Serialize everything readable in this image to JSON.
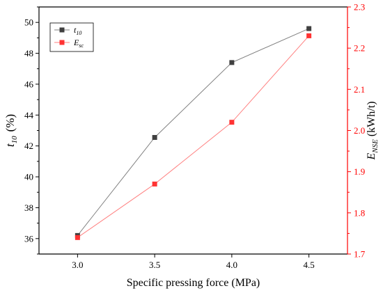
{
  "chart_data": {
    "type": "line",
    "xlabel": "Specific pressing force (MPa)",
    "x": [
      3.0,
      3.5,
      4.0,
      4.5
    ],
    "x_ticks": [
      "3.0",
      "3.5",
      "4.0",
      "4.5"
    ],
    "xlim": [
      2.75,
      4.75
    ],
    "left_axis": {
      "label_main": "t",
      "label_sub": "10",
      "label_unit": "(%)",
      "ylim": [
        35,
        51
      ],
      "ticks": [
        36,
        38,
        40,
        42,
        44,
        46,
        48,
        50
      ],
      "color": "#000000"
    },
    "right_axis": {
      "label_main": "E",
      "label_sub": "NSE",
      "label_unit": "(kWh/t)",
      "ylim": [
        1.7,
        2.3
      ],
      "ticks": [
        "1.7",
        "1.8",
        "1.9",
        "2.0",
        "2.1",
        "2.2",
        "2.3"
      ],
      "color": "#ff0000"
    },
    "series": [
      {
        "name_main": "t",
        "name_sub": "10",
        "axis": "left",
        "color": "#404040",
        "line_color": "#808080",
        "values": [
          36.2,
          42.55,
          47.4,
          49.6
        ]
      },
      {
        "name_main": "E",
        "name_sub": "sc",
        "axis": "right",
        "color": "#ff3333",
        "line_color": "#ff8080",
        "values": [
          1.74,
          1.87,
          2.02,
          2.23
        ]
      }
    ],
    "legend_position": "top-left"
  }
}
